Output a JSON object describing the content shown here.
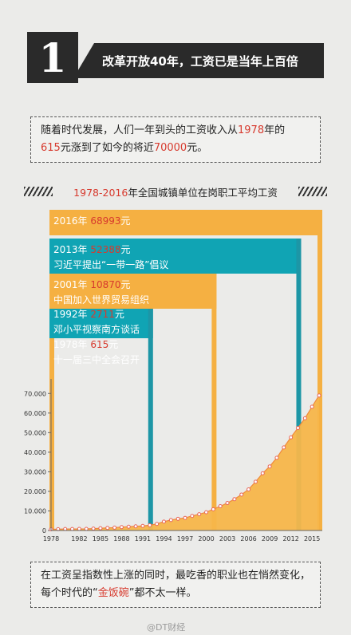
{
  "header": {
    "number": "1",
    "title": "改革开放40年，工资已是当年上百倍"
  },
  "intro": {
    "part1": "随着时代发展，人们一年到头的工资收入从",
    "year": "1978",
    "part2": "年的",
    "from_value": "615",
    "part3": "元涨到了如今的将近",
    "to_value": "70000",
    "part4": "元。"
  },
  "chart_title": {
    "range": "1978-2016",
    "text": "年全国城镇单位在岗职工平均工资"
  },
  "colors": {
    "orange": "#f5b042",
    "teal": "#10a4b4",
    "area": "#f7b64a",
    "highlight": "#d73a2e",
    "dot": "#e8675b",
    "stem": "#1d96a6"
  },
  "chart_data": {
    "type": "area",
    "title": "1978-2016年全国城镇单位在岗职工平均工资",
    "x": [
      1978,
      1979,
      1980,
      1981,
      1982,
      1983,
      1984,
      1985,
      1986,
      1987,
      1988,
      1989,
      1990,
      1991,
      1992,
      1993,
      1994,
      1995,
      1996,
      1997,
      1998,
      1999,
      2000,
      2001,
      2002,
      2003,
      2004,
      2005,
      2006,
      2007,
      2008,
      2009,
      2010,
      2011,
      2012,
      2013,
      2014,
      2015,
      2016
    ],
    "values": [
      615,
      668,
      762,
      772,
      798,
      826,
      974,
      1148,
      1329,
      1459,
      1747,
      1935,
      2140,
      2340,
      2711,
      3371,
      4538,
      5348,
      5980,
      6444,
      7446,
      8319,
      9333,
      10870,
      12422,
      14040,
      16024,
      18364,
      21001,
      24932,
      29229,
      32736,
      37147,
      42452,
      47593,
      52388,
      57361,
      63241,
      68993
    ],
    "x_ticks": [
      "1978",
      "1982",
      "1985",
      "1988",
      "1991",
      "1994",
      "1997",
      "2000",
      "2003",
      "2006",
      "2009",
      "2012",
      "2015"
    ],
    "y_ticks": [
      "0",
      "10.000",
      "20.000",
      "30.000",
      "40.000",
      "50.000",
      "60.000",
      "70.000"
    ],
    "ylim": [
      0,
      75000
    ],
    "annotations": [
      {
        "year": 2016,
        "year_label": "2016年",
        "value_label": "68993",
        "unit": "元",
        "event": "",
        "color": "orange"
      },
      {
        "year": 2013,
        "year_label": "2013年",
        "value_label": "52388",
        "unit": "元",
        "event": "习近平提出“一带一路”倡议",
        "color": "teal"
      },
      {
        "year": 2001,
        "year_label": "2001年",
        "value_label": "10870",
        "unit": "元",
        "event": "中国加入世界贸易组织",
        "color": "orange"
      },
      {
        "year": 1992,
        "year_label": "1992年",
        "value_label": "2711",
        "unit": "元",
        "event": "邓小平视察南方谈话",
        "color": "teal"
      },
      {
        "year": 1978,
        "year_label": "1978年",
        "value_label": "615",
        "unit": "元",
        "event": "十一届三中全会召开",
        "color": "orange"
      }
    ]
  },
  "outro": {
    "part1": "在工资呈指数性上涨的同时，最吃香的职业也在悄然变化，每个时代的",
    "quote_open": "“",
    "highlight": "金饭碗",
    "quote_close": "”",
    "part2": "都不太一样。"
  },
  "watermark": "@DT财经"
}
